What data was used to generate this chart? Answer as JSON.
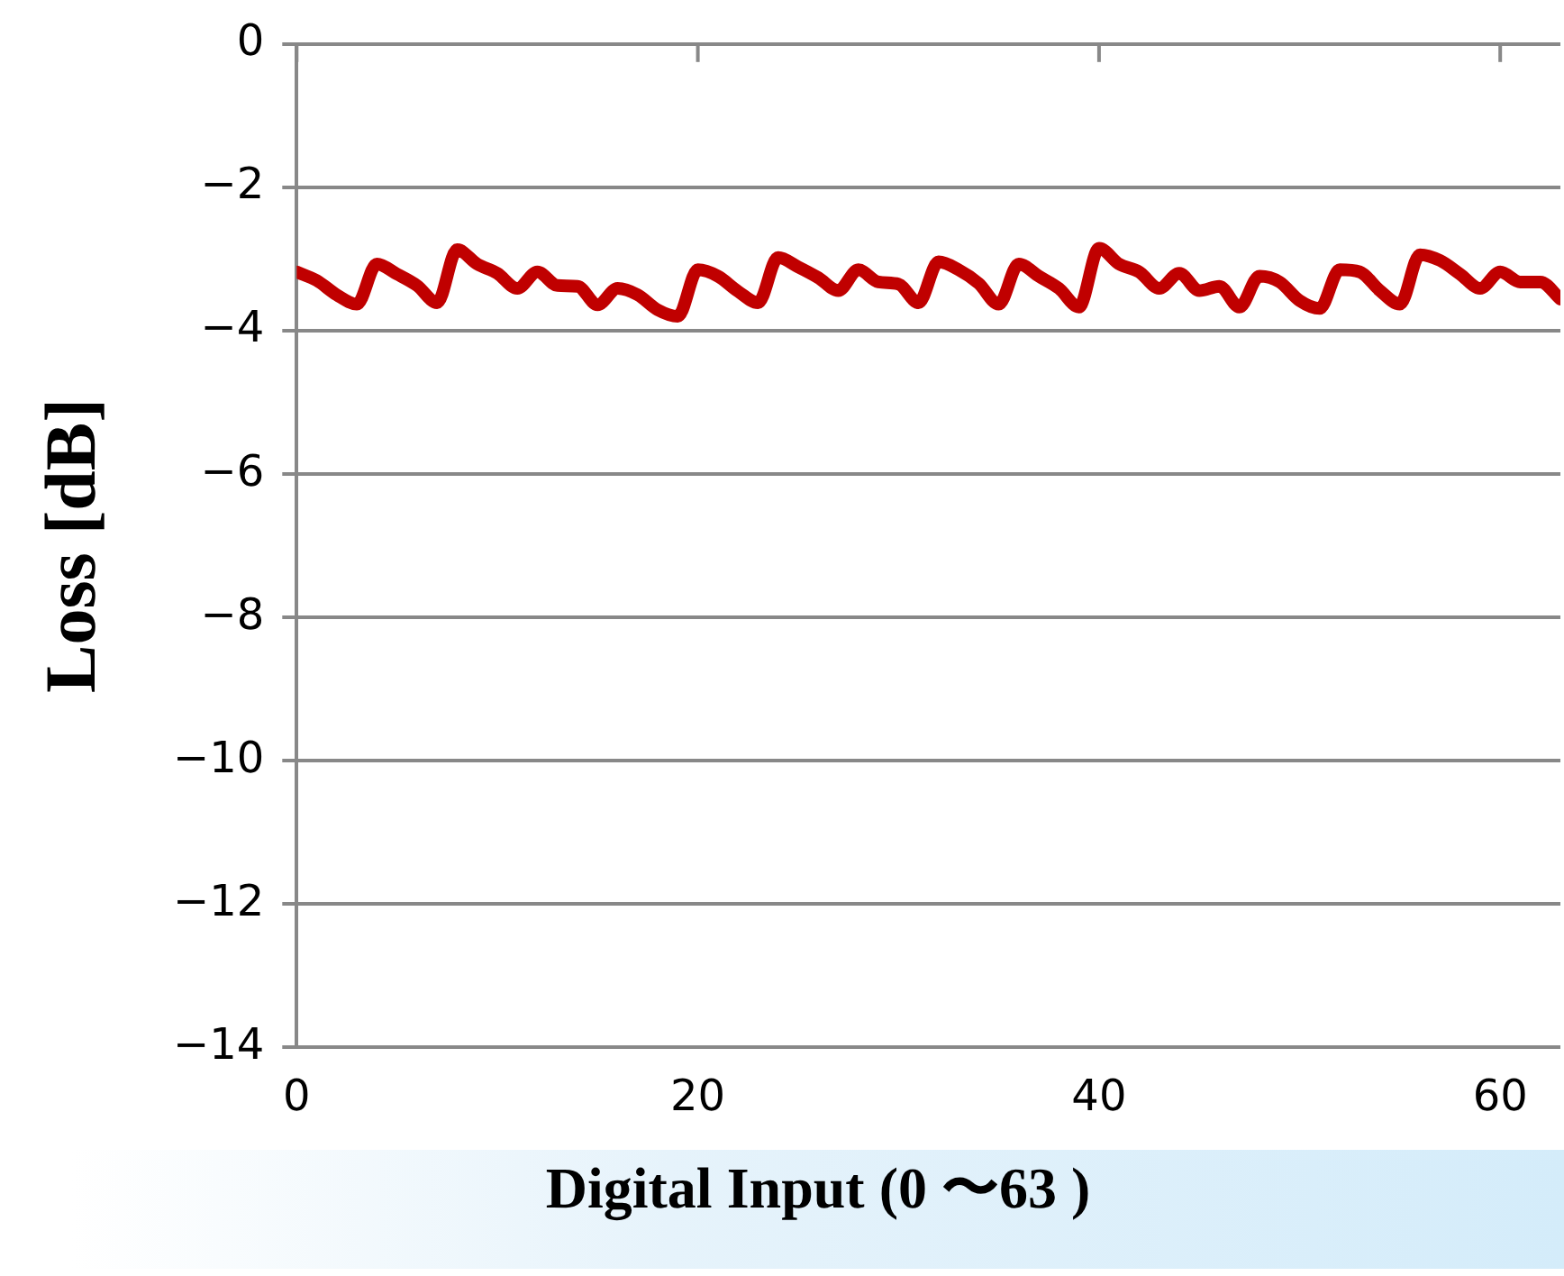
{
  "chart_data": {
    "type": "line",
    "xlabel": "Digital Input (0 〜63 )",
    "ylabel": "Loss [dB]",
    "x": [
      0,
      1,
      2,
      3,
      4,
      5,
      6,
      7,
      8,
      9,
      10,
      11,
      12,
      13,
      14,
      15,
      16,
      17,
      18,
      19,
      20,
      21,
      22,
      23,
      24,
      25,
      26,
      27,
      28,
      29,
      30,
      31,
      32,
      33,
      34,
      35,
      36,
      37,
      38,
      39,
      40,
      41,
      42,
      43,
      44,
      45,
      46,
      47,
      48,
      49,
      50,
      51,
      52,
      53,
      54,
      55,
      56,
      57,
      58,
      59,
      60,
      61,
      62,
      63
    ],
    "series": [
      {
        "color": "#c00000",
        "values": [
          -3.18,
          -3.3,
          -3.5,
          -3.63,
          -3.07,
          -3.21,
          -3.37,
          -3.61,
          -2.87,
          -3.07,
          -3.2,
          -3.41,
          -3.18,
          -3.37,
          -3.38,
          -3.64,
          -3.41,
          -3.5,
          -3.71,
          -3.8,
          -3.15,
          -3.24,
          -3.45,
          -3.61,
          -2.98,
          -3.11,
          -3.26,
          -3.44,
          -3.15,
          -3.32,
          -3.35,
          -3.61,
          -3.04,
          -3.15,
          -3.34,
          -3.63,
          -3.07,
          -3.24,
          -3.41,
          -3.67,
          -2.85,
          -3.07,
          -3.18,
          -3.41,
          -3.2,
          -3.44,
          -3.38,
          -3.67,
          -3.24,
          -3.32,
          -3.58,
          -3.69,
          -3.15,
          -3.18,
          -3.44,
          -3.63,
          -2.94,
          -3.02,
          -3.21,
          -3.41,
          -3.18,
          -3.32,
          -3.32,
          -3.56
        ]
      }
    ],
    "xlim": [
      0,
      63
    ],
    "xticks": [
      0,
      20,
      40,
      60
    ],
    "ylim": [
      -14,
      0
    ],
    "yticks": [
      -14,
      -12,
      -10,
      -8,
      -6,
      -4,
      -2,
      0
    ],
    "grid": "y",
    "legend": false,
    "marker": "none",
    "line_style": "solid"
  }
}
